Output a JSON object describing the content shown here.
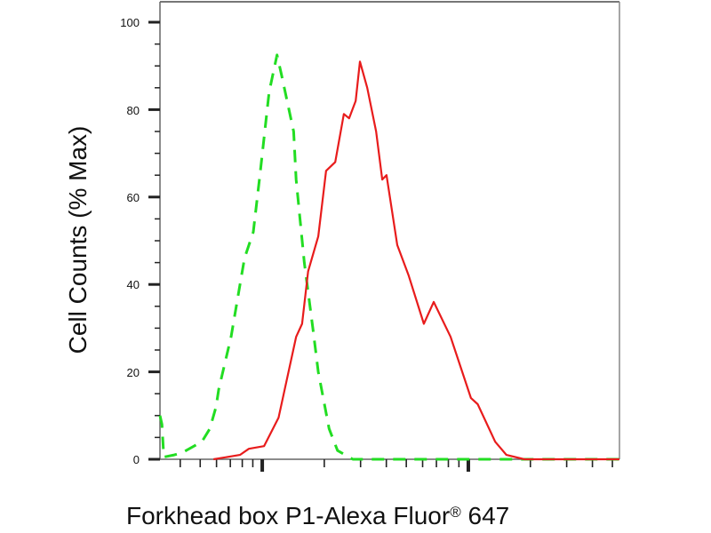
{
  "chart_data": {
    "type": "line",
    "title": "",
    "xlabel_main": "Forkhead box P1-Alexa Fluor",
    "xlabel_sup": "®",
    "xlabel_tail": " 647",
    "ylabel": "Cell Counts (% Max)",
    "xscale": "log",
    "xlim": [
      3.19,
      541
    ],
    "ylim": [
      0,
      100
    ],
    "y_ticks": [
      0,
      20,
      40,
      60,
      80,
      100
    ],
    "y_tick_labels": [
      "0",
      "20",
      "40",
      "60",
      "80",
      "100"
    ],
    "x_tick_labels_shown": false,
    "grid": false,
    "legend": "none",
    "series": [
      {
        "color": "#22dd22",
        "style": "dashed",
        "x": [
          3.19,
          3.26,
          3.33,
          3.74,
          4.09,
          5.09,
          5.57,
          5.97,
          6.15,
          7.06,
          8.2,
          9.05,
          9.8,
          10.8,
          11.8,
          12.4,
          14.2,
          14.6,
          16.0,
          17.6,
          18.7,
          21.1,
          23.2,
          27.5,
          34.6,
          51.4,
          76.6,
          139,
          252,
          541
        ],
        "y": [
          10,
          8,
          0.5,
          1,
          1.5,
          4,
          7,
          12,
          16,
          28,
          46,
          52,
          66,
          84,
          92.5,
          88,
          75,
          64,
          45,
          30,
          20,
          7,
          2,
          0,
          0,
          0,
          0,
          0,
          0,
          0
        ]
      },
      {
        "color": "#e81c1c",
        "style": "solid",
        "x": [
          5.8,
          7.8,
          8.61,
          10.2,
          12.0,
          14.6,
          15.6,
          16.7,
          18.7,
          20.4,
          22.6,
          24.9,
          26.4,
          28.4,
          29.8,
          32.3,
          35.7,
          38.2,
          40.1,
          45.2,
          51.4,
          60.8,
          67.9,
          82.0,
          103,
          111,
          135,
          153,
          187,
          541
        ],
        "y": [
          0,
          1,
          2.4,
          3,
          9.5,
          28,
          31,
          43,
          51,
          66,
          68,
          79,
          78,
          82,
          91,
          85,
          75,
          64,
          65,
          49,
          42,
          31,
          36,
          28,
          14,
          12.6,
          4,
          1,
          0,
          0
        ]
      }
    ]
  }
}
